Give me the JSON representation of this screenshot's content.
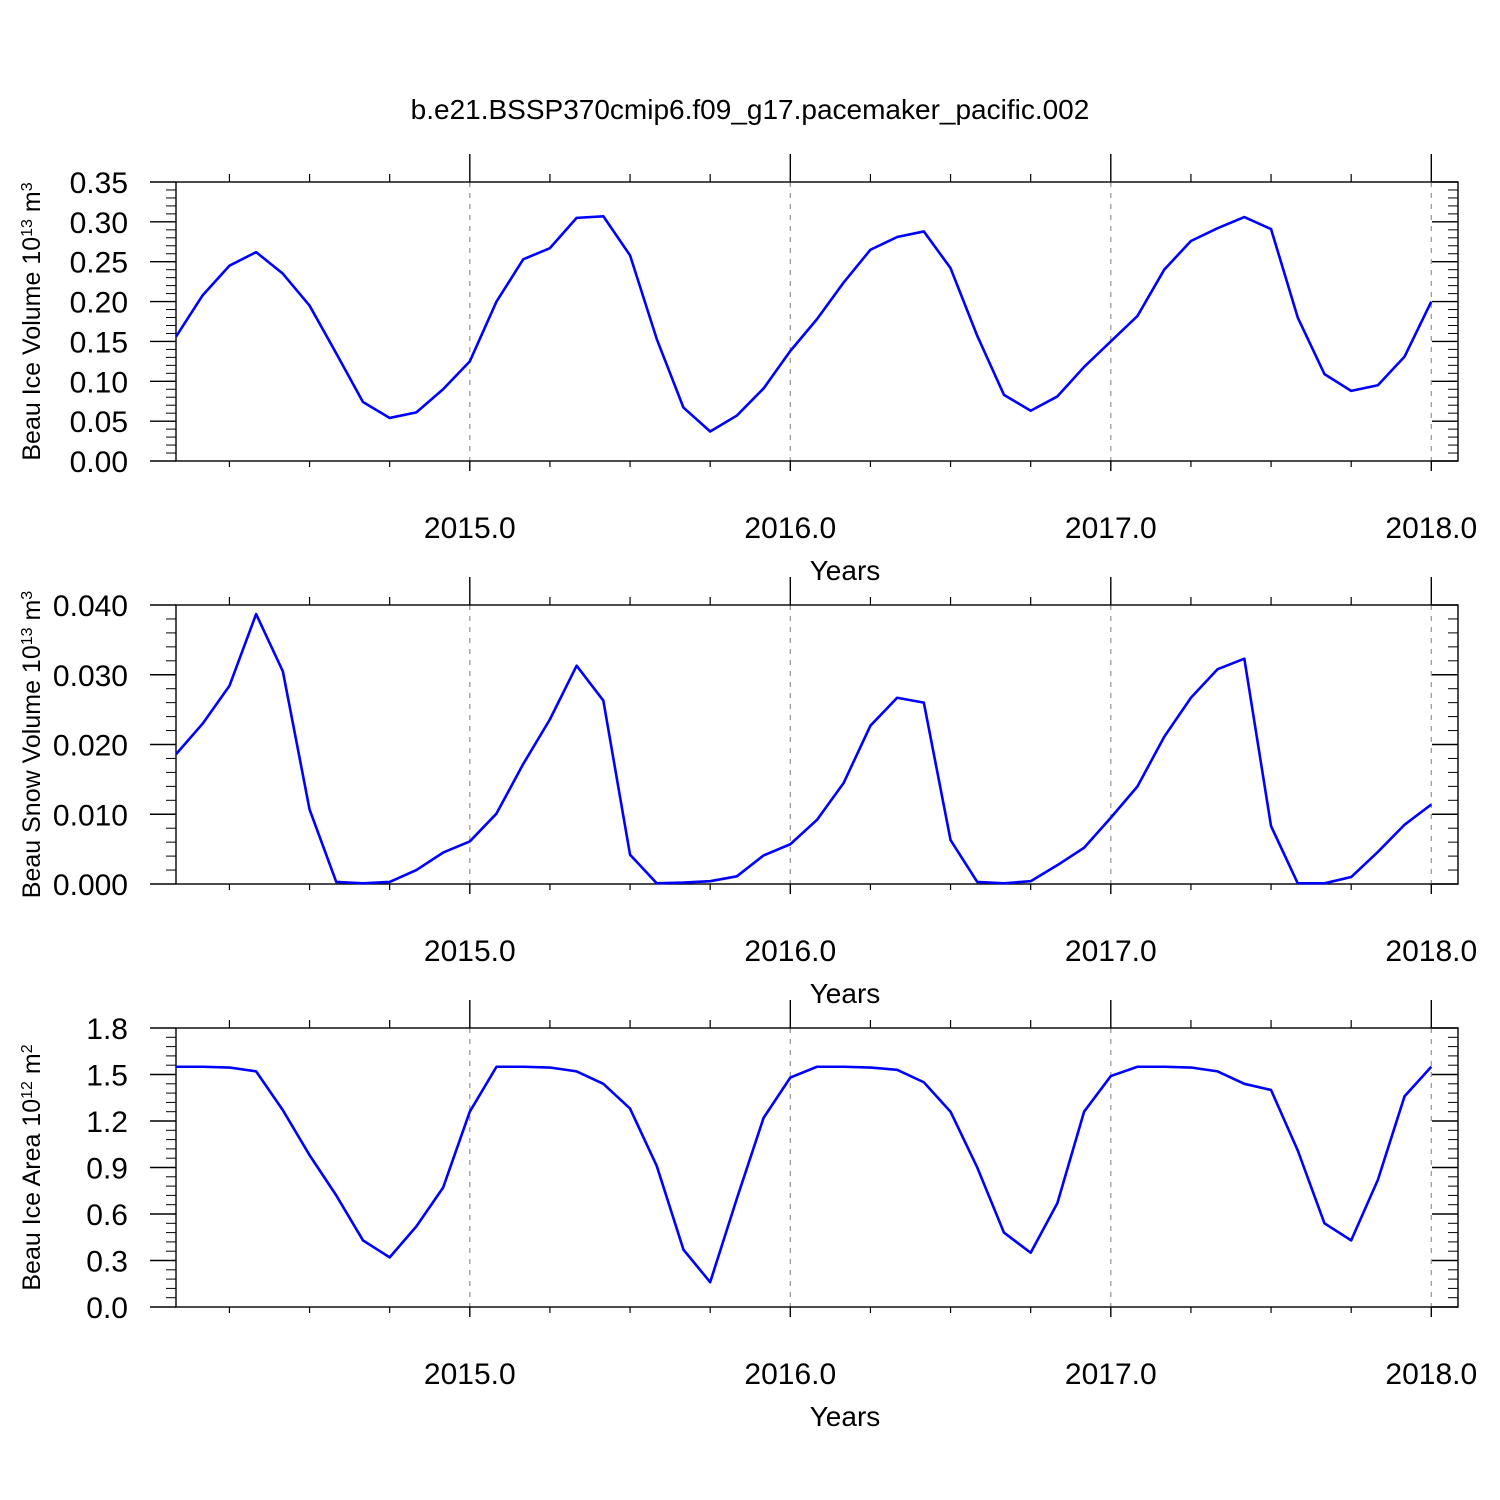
{
  "title": "b.e21.BSSP370cmip6.f09_g17.pacemaker_pacific.002",
  "colors": {
    "line": "#0000ff",
    "axis": "#000000",
    "grid": "#9a9a9a"
  },
  "chart_data": [
    {
      "type": "line",
      "ylabel": {
        "main": "Beau Ice Volume 10",
        "exp": "13",
        "unit": " m",
        "unit_exp": "3"
      },
      "xlabel": "Years",
      "xlim": [
        2014.0833,
        2018.0833
      ],
      "ylim": [
        0,
        0.35
      ],
      "yticks": [
        0,
        0.05,
        0.1,
        0.15,
        0.2,
        0.25,
        0.3,
        0.35
      ],
      "ytick_labels": [
        "0.00",
        "0.05",
        "0.10",
        "0.15",
        "0.20",
        "0.25",
        "0.30",
        "0.35"
      ],
      "xticks": [
        2015.0,
        2016.0,
        2017.0,
        2018.0
      ],
      "xtick_labels": [
        "2015.0",
        "2016.0",
        "2017.0",
        "2018.0"
      ],
      "grid": "vertical dashed at major x ticks",
      "series": [
        {
          "values": [
            0.156,
            0.208,
            0.245,
            0.262,
            0.235,
            0.195,
            0.135,
            0.074,
            0.054,
            0.061,
            0.09,
            0.125,
            0.2,
            0.253,
            0.267,
            0.305,
            0.307,
            0.258,
            0.153,
            0.067,
            0.037,
            0.057,
            0.091,
            0.138,
            0.178,
            0.224,
            0.265,
            0.281,
            0.288,
            0.242,
            0.157,
            0.083,
            0.063,
            0.081,
            0.118,
            0.15,
            0.182,
            0.24,
            0.276,
            0.292,
            0.306,
            0.291,
            0.18,
            0.109,
            0.088,
            0.095,
            0.131,
            0.2
          ]
        }
      ]
    },
    {
      "type": "line",
      "ylabel": {
        "main": "Beau Snow Volume 10",
        "exp": "13",
        "unit": " m",
        "unit_exp": "3"
      },
      "xlabel": "Years",
      "xlim": [
        2014.0833,
        2018.0833
      ],
      "ylim": [
        0,
        0.04
      ],
      "yticks": [
        0,
        0.01,
        0.02,
        0.03,
        0.04
      ],
      "ytick_labels": [
        "0.000",
        "0.010",
        "0.020",
        "0.030",
        "0.040"
      ],
      "xticks": [
        2015.0,
        2016.0,
        2017.0,
        2018.0
      ],
      "xtick_labels": [
        "2015.0",
        "2016.0",
        "2017.0",
        "2018.0"
      ],
      "grid": "vertical dashed at major x ticks",
      "series": [
        {
          "values": [
            0.0186,
            0.023,
            0.0284,
            0.0387,
            0.0305,
            0.0107,
            0.0003,
            0.0001,
            0.0003,
            0.002,
            0.0045,
            0.0061,
            0.0101,
            0.0172,
            0.0236,
            0.0313,
            0.0263,
            0.0042,
            0.0001,
            0.0002,
            0.0004,
            0.0011,
            0.0041,
            0.0057,
            0.0092,
            0.0145,
            0.0227,
            0.0267,
            0.026,
            0.0063,
            0.0003,
            0.0001,
            0.0004,
            0.0027,
            0.0052,
            0.0095,
            0.014,
            0.0211,
            0.0267,
            0.0308,
            0.0323,
            0.0083,
            0.0001,
            0.0001,
            0.001,
            0.0046,
            0.0085,
            0.0114
          ]
        }
      ]
    },
    {
      "type": "line",
      "ylabel": {
        "main": "Beau Ice Area 10",
        "exp": "12",
        "unit": " m",
        "unit_exp": "2"
      },
      "xlabel": "Years",
      "xlim": [
        2014.0833,
        2018.0833
      ],
      "ylim": [
        0,
        1.8
      ],
      "yticks": [
        0,
        0.3,
        0.6,
        0.9,
        1.2,
        1.5,
        1.8
      ],
      "ytick_labels": [
        "0.0",
        "0.3",
        "0.6",
        "0.9",
        "1.2",
        "1.5",
        "1.8"
      ],
      "xticks": [
        2015.0,
        2016.0,
        2017.0,
        2018.0
      ],
      "xtick_labels": [
        "2015.0",
        "2016.0",
        "2017.0",
        "2018.0"
      ],
      "grid": "vertical dashed at major x ticks",
      "series": [
        {
          "values": [
            1.55,
            1.55,
            1.545,
            1.52,
            1.27,
            0.98,
            0.72,
            0.43,
            0.32,
            0.52,
            0.77,
            1.26,
            1.55,
            1.55,
            1.545,
            1.52,
            1.44,
            1.28,
            0.91,
            0.37,
            0.16,
            0.7,
            1.22,
            1.48,
            1.55,
            1.55,
            1.545,
            1.53,
            1.45,
            1.26,
            0.9,
            0.48,
            0.35,
            0.67,
            1.26,
            1.49,
            1.55,
            1.55,
            1.545,
            1.52,
            1.44,
            1.4,
            1.01,
            0.54,
            0.43,
            0.82,
            1.36,
            1.55
          ]
        }
      ]
    }
  ]
}
